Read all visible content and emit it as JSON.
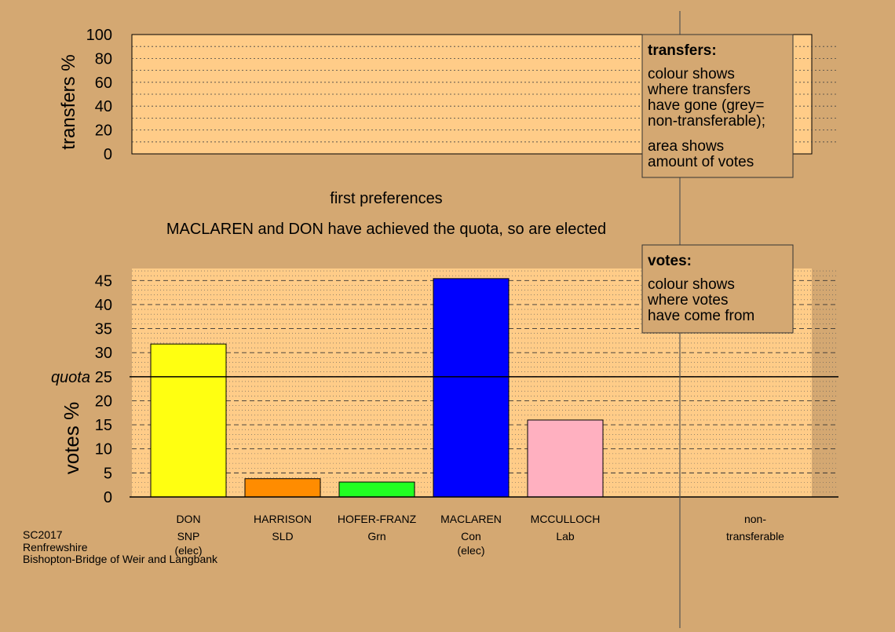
{
  "chart_data": [
    {
      "type": "bar",
      "panel": "transfers",
      "ylabel": "transfers %",
      "ylim": [
        0,
        100
      ],
      "yticks": [
        0,
        20,
        40,
        60,
        80,
        100
      ],
      "categories": [],
      "values": [],
      "caption": "first preferences"
    },
    {
      "type": "bar",
      "panel": "votes",
      "title": "MACLAREN and DON have achieved the quota, so are elected",
      "ylabel": "votes %",
      "ylim": [
        0,
        47.5
      ],
      "yticks": [
        0,
        5,
        10,
        15,
        20,
        25,
        30,
        35,
        40,
        45
      ],
      "quota": 25,
      "quota_label": "quota",
      "categories": [
        {
          "name": "DON",
          "party": "SNP",
          "note": "(elec)"
        },
        {
          "name": "HARRISON",
          "party": "SLD",
          "note": ""
        },
        {
          "name": "HOFER-FRANZ",
          "party": "Grn",
          "note": ""
        },
        {
          "name": "MACLAREN",
          "party": "Con",
          "note": "(elec)"
        },
        {
          "name": "MCCULLOCH",
          "party": "Lab",
          "note": ""
        }
      ],
      "values": [
        31.8,
        3.8,
        3.1,
        45.4,
        16.0
      ],
      "colors": [
        "#ffff11",
        "#ff8c00",
        "#22ff22",
        "#0000ff",
        "#ffb0c0"
      ],
      "nontransferable_label": [
        "non-",
        "transferable"
      ]
    }
  ],
  "legend_transfers": {
    "title": "transfers:",
    "lines1": [
      "colour shows",
      "where transfers",
      "have gone (grey=",
      "non-transferable);"
    ],
    "lines2": [
      "area shows",
      "amount of votes"
    ]
  },
  "legend_votes": {
    "title": "votes:",
    "lines": [
      "colour shows",
      "where votes",
      "have come from"
    ]
  },
  "footer": {
    "lines": [
      "SC2017",
      "Renfrewshire",
      "Bishopton-Bridge of Weir and Langbank"
    ]
  },
  "colors": {
    "background": "#d4a872",
    "panel": "#ffcc88"
  }
}
